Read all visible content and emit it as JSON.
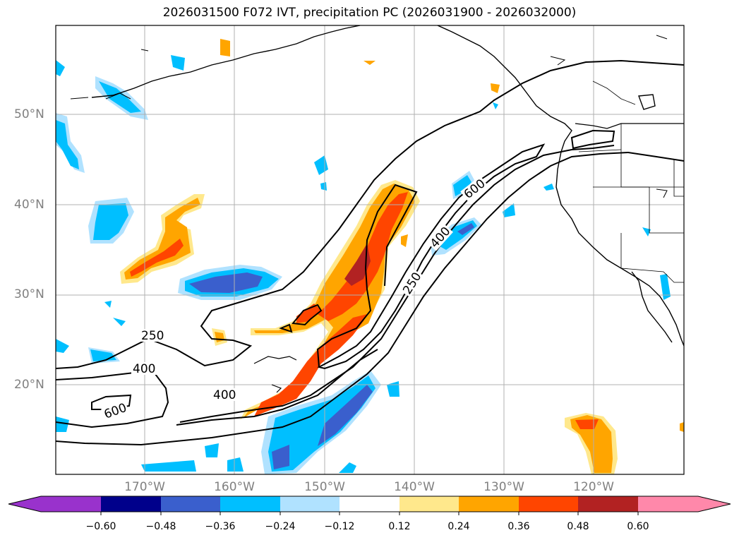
{
  "title": "2026031500 F072 IVT, precipitation PC (2026031900 - 2026032000)",
  "lat_labels": [
    "50°N",
    "40°N",
    "30°N",
    "20°N"
  ],
  "lon_labels": [
    "170°W",
    "160°W",
    "150°W",
    "140°W",
    "130°W",
    "120°W"
  ],
  "contour_labels": {
    "c250a": "250",
    "c400a": "400",
    "c400b": "400",
    "c600a": "600",
    "c600b": "600",
    "c400c": "400",
    "c250b": "250"
  },
  "colorbar": {
    "ticks": [
      "−0.60",
      "−0.48",
      "−0.36",
      "−0.24",
      "−0.12",
      "0.12",
      "0.24",
      "0.36",
      "0.48",
      "0.60"
    ],
    "colors": [
      "#9932cc",
      "#00008b",
      "#3a5fcd",
      "#00bfff",
      "#b0e2ff",
      "#ffffff",
      "#ffe88c",
      "#ffa500",
      "#ff4500",
      "#b22222",
      "#ff88aa"
    ]
  },
  "colors": {
    "neg_strong": "#3a5fcd",
    "neg_mid": "#00bfff",
    "neg_weak": "#b0e2ff",
    "pos_weak": "#ffe88c",
    "pos_mid": "#ffa500",
    "pos_strong": "#ff4500",
    "pos_max": "#b22222"
  }
}
